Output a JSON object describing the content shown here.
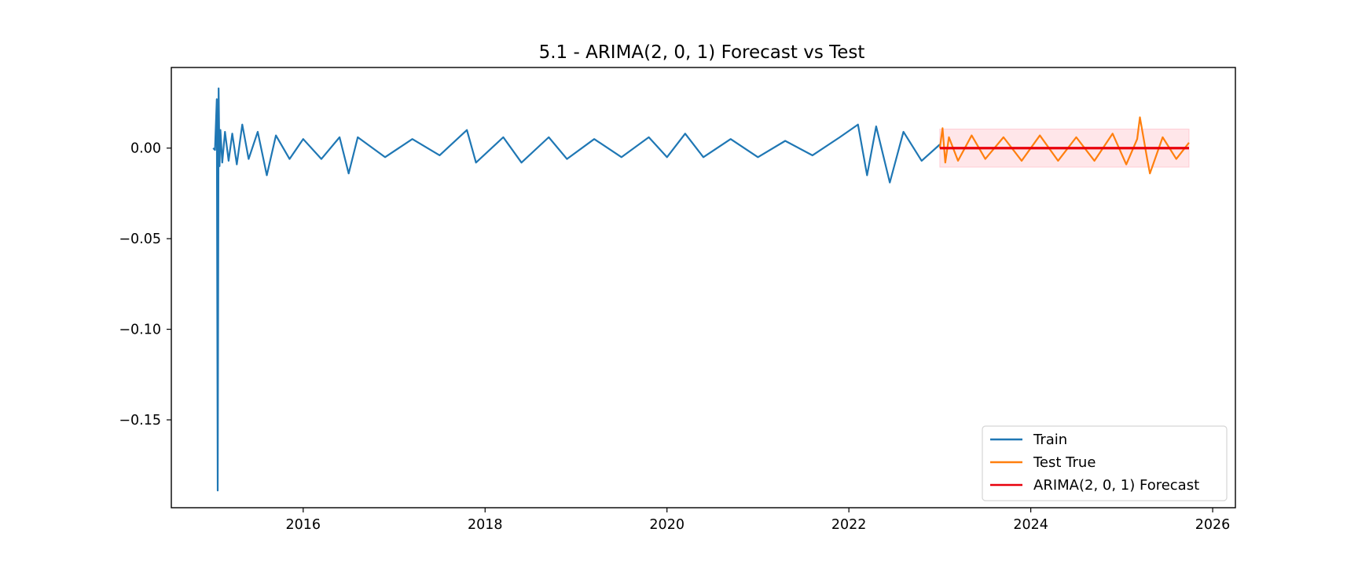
{
  "chart_data": {
    "type": "line",
    "title": "5.1 - ARIMA(2, 0, 1) Forecast vs Test",
    "xlabel": "",
    "ylabel": "",
    "xlim": [
      2014.55,
      2026.25
    ],
    "ylim": [
      -0.1985,
      0.0445
    ],
    "x_ticks": [
      2016,
      2018,
      2020,
      2022,
      2024,
      2026
    ],
    "x_tick_labels": [
      "2016",
      "2018",
      "2020",
      "2022",
      "2024",
      "2026"
    ],
    "y_ticks": [
      0.0,
      -0.05,
      -0.1,
      -0.15
    ],
    "y_tick_labels": [
      "0.00",
      "−0.05",
      "−0.10",
      "−0.15"
    ],
    "grid": false,
    "legend_position": "lower-right",
    "series": [
      {
        "name": "Train",
        "color": "#1f77b4",
        "x": [
          2015.01,
          2015.03,
          2015.05,
          2015.06,
          2015.07,
          2015.08,
          2015.09,
          2015.11,
          2015.14,
          2015.18,
          2015.22,
          2015.27,
          2015.33,
          2015.4,
          2015.5,
          2015.6,
          2015.7,
          2015.85,
          2016.0,
          2016.2,
          2016.4,
          2016.5,
          2016.6,
          2016.9,
          2017.2,
          2017.5,
          2017.8,
          2017.9,
          2018.2,
          2018.4,
          2018.7,
          2018.9,
          2019.2,
          2019.5,
          2019.8,
          2020.0,
          2020.2,
          2020.4,
          2020.7,
          2021.0,
          2021.3,
          2021.6,
          2021.9,
          2022.1,
          2022.2,
          2022.3,
          2022.45,
          2022.6,
          2022.8,
          2023.0
        ],
        "y": [
          0.0,
          -0.001,
          0.027,
          -0.189,
          0.033,
          -0.01,
          0.01,
          -0.008,
          0.009,
          -0.007,
          0.008,
          -0.009,
          0.013,
          -0.006,
          0.009,
          -0.015,
          0.007,
          -0.006,
          0.005,
          -0.006,
          0.006,
          -0.014,
          0.006,
          -0.005,
          0.005,
          -0.004,
          0.01,
          -0.008,
          0.006,
          -0.008,
          0.006,
          -0.006,
          0.005,
          -0.005,
          0.006,
          -0.005,
          0.008,
          -0.005,
          0.005,
          -0.005,
          0.004,
          -0.004,
          0.006,
          0.013,
          -0.015,
          0.012,
          -0.019,
          0.009,
          -0.007,
          0.002
        ]
      },
      {
        "name": "Test True",
        "color": "#ff7f0e",
        "x": [
          2023.0,
          2023.03,
          2023.06,
          2023.1,
          2023.2,
          2023.35,
          2023.5,
          2023.7,
          2023.9,
          2024.1,
          2024.3,
          2024.5,
          2024.7,
          2024.9,
          2025.05,
          2025.17,
          2025.2,
          2025.28,
          2025.31,
          2025.45,
          2025.6,
          2025.74
        ],
        "y": [
          0.0,
          0.011,
          -0.008,
          0.006,
          -0.007,
          0.007,
          -0.006,
          0.006,
          -0.007,
          0.007,
          -0.007,
          0.006,
          -0.007,
          0.008,
          -0.009,
          0.005,
          0.017,
          -0.006,
          -0.014,
          0.006,
          -0.006,
          0.003
        ]
      },
      {
        "name": "ARIMA(2, 0, 1) Forecast",
        "color": "#e8000b",
        "x": [
          2023.0,
          2025.74
        ],
        "y": [
          0.0,
          0.0
        ]
      }
    ],
    "confidence_band": {
      "x": [
        2023.0,
        2025.74
      ],
      "upper": 0.0105,
      "lower": -0.0105,
      "color": "#ffb6c1"
    }
  }
}
